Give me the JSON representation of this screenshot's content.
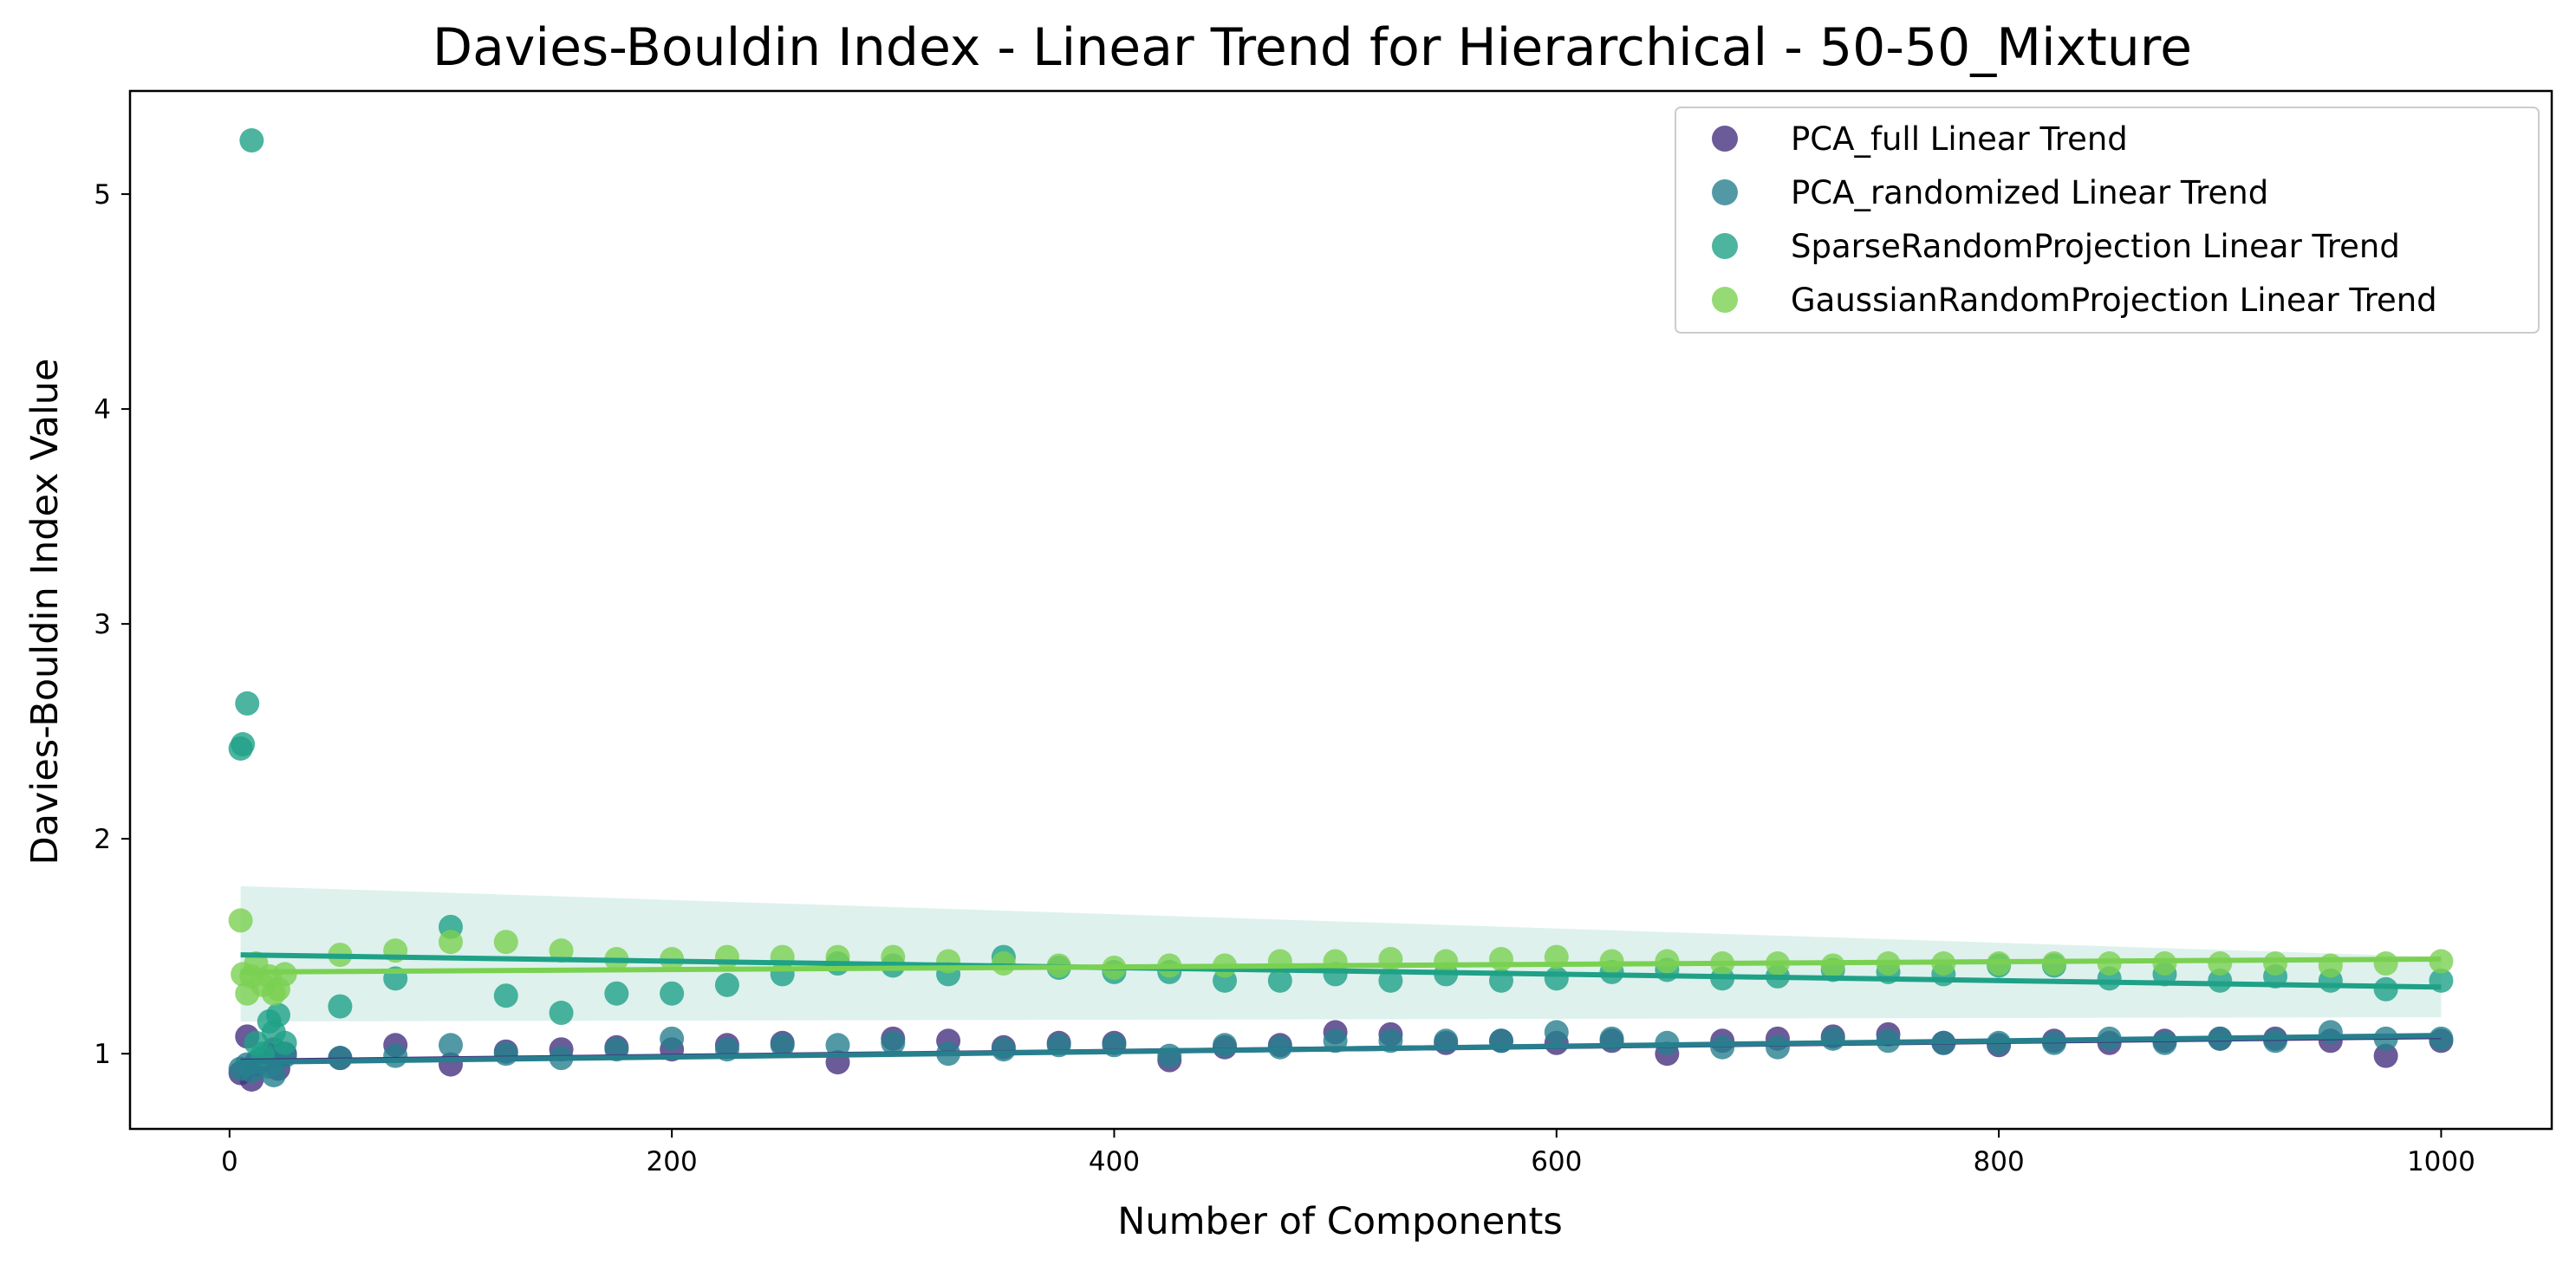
{
  "chart_data": {
    "type": "scatter",
    "title": "Davies-Bouldin Index - Linear Trend for Hierarchical - 50-50_Mixture",
    "xlabel": "Number of Components",
    "ylabel": "Davies-Bouldin Index Value",
    "xlim": [
      -45,
      1050
    ],
    "ylim": [
      0.65,
      5.48
    ],
    "xticks": [
      0,
      200,
      400,
      600,
      800,
      1000
    ],
    "yticks": [
      1,
      2,
      3,
      4,
      5
    ],
    "legend_position": "upper right",
    "series": [
      {
        "name": "PCA_full Linear Trend",
        "color": "#46327e",
        "x": [
          5,
          8,
          10,
          12,
          15,
          18,
          20,
          22,
          25,
          50,
          75,
          100,
          125,
          150,
          175,
          200,
          225,
          250,
          275,
          300,
          325,
          350,
          375,
          400,
          425,
          450,
          475,
          500,
          525,
          550,
          575,
          600,
          625,
          650,
          675,
          700,
          725,
          750,
          775,
          800,
          825,
          850,
          875,
          900,
          925,
          950,
          975,
          1000
        ],
        "y": [
          0.91,
          1.08,
          0.88,
          0.95,
          0.97,
          0.99,
          1.02,
          0.93,
          1.0,
          0.98,
          1.04,
          0.95,
          1.01,
          1.02,
          1.03,
          1.02,
          1.04,
          1.05,
          0.96,
          1.07,
          1.06,
          1.03,
          1.05,
          1.05,
          0.97,
          1.03,
          1.04,
          1.1,
          1.09,
          1.05,
          1.06,
          1.05,
          1.06,
          1.0,
          1.06,
          1.07,
          1.08,
          1.09,
          1.05,
          1.04,
          1.06,
          1.05,
          1.06,
          1.07,
          1.07,
          1.06,
          0.99,
          1.06
        ],
        "trend": [
          0.965,
          1.08
        ]
      },
      {
        "name": "PCA_randomized Linear Trend",
        "color": "#277f8e",
        "x": [
          5,
          8,
          10,
          12,
          15,
          18,
          20,
          22,
          25,
          50,
          75,
          100,
          125,
          150,
          175,
          200,
          225,
          250,
          275,
          300,
          325,
          350,
          375,
          400,
          425,
          450,
          475,
          500,
          525,
          550,
          575,
          600,
          625,
          650,
          675,
          700,
          725,
          750,
          775,
          800,
          825,
          850,
          875,
          900,
          925,
          950,
          975,
          1000
        ],
        "y": [
          0.93,
          0.95,
          0.92,
          0.96,
          0.98,
          0.94,
          0.9,
          1.0,
          0.99,
          0.98,
          0.99,
          1.04,
          1.0,
          0.98,
          1.02,
          1.07,
          1.02,
          1.04,
          1.04,
          1.05,
          1.0,
          1.02,
          1.04,
          1.04,
          0.99,
          1.04,
          1.03,
          1.06,
          1.06,
          1.06,
          1.06,
          1.1,
          1.07,
          1.05,
          1.03,
          1.03,
          1.07,
          1.06,
          1.05,
          1.05,
          1.05,
          1.07,
          1.05,
          1.07,
          1.06,
          1.1,
          1.07,
          1.07
        ],
        "trend": [
          0.96,
          1.085
        ]
      },
      {
        "name": "SparseRandomProjection Linear Trend",
        "color": "#1fa187",
        "x": [
          5,
          6,
          8,
          10,
          12,
          15,
          18,
          20,
          22,
          25,
          50,
          75,
          100,
          125,
          150,
          175,
          200,
          225,
          250,
          275,
          300,
          325,
          350,
          375,
          400,
          425,
          450,
          475,
          500,
          525,
          550,
          575,
          600,
          625,
          650,
          675,
          700,
          725,
          750,
          775,
          800,
          825,
          850,
          875,
          900,
          925,
          950,
          975,
          1000
        ],
        "y": [
          2.42,
          2.44,
          2.63,
          5.25,
          1.05,
          1.0,
          1.15,
          1.1,
          1.18,
          1.05,
          1.22,
          1.35,
          1.59,
          1.27,
          1.19,
          1.28,
          1.28,
          1.32,
          1.37,
          1.42,
          1.41,
          1.37,
          1.45,
          1.4,
          1.38,
          1.38,
          1.34,
          1.34,
          1.37,
          1.34,
          1.37,
          1.34,
          1.35,
          1.38,
          1.39,
          1.35,
          1.36,
          1.39,
          1.38,
          1.37,
          1.41,
          1.41,
          1.35,
          1.37,
          1.34,
          1.36,
          1.34,
          1.3,
          1.34
        ],
        "trend": [
          1.46,
          1.31
        ],
        "band": [
          [
            1.15,
            1.78
          ],
          [
            1.17,
            1.45
          ]
        ]
      },
      {
        "name": "GaussianRandomProjection Linear Trend",
        "color": "#7ad151",
        "x": [
          5,
          6,
          8,
          10,
          12,
          15,
          18,
          20,
          22,
          25,
          50,
          75,
          100,
          125,
          150,
          175,
          200,
          225,
          250,
          275,
          300,
          325,
          350,
          375,
          400,
          425,
          450,
          475,
          500,
          525,
          550,
          575,
          600,
          625,
          650,
          675,
          700,
          725,
          750,
          775,
          800,
          825,
          850,
          875,
          900,
          925,
          950,
          975,
          1000
        ],
        "y": [
          1.62,
          1.37,
          1.28,
          1.36,
          1.42,
          1.32,
          1.36,
          1.28,
          1.3,
          1.37,
          1.46,
          1.48,
          1.52,
          1.52,
          1.48,
          1.44,
          1.44,
          1.45,
          1.45,
          1.45,
          1.45,
          1.43,
          1.42,
          1.41,
          1.4,
          1.41,
          1.41,
          1.43,
          1.43,
          1.44,
          1.43,
          1.44,
          1.45,
          1.43,
          1.43,
          1.42,
          1.42,
          1.41,
          1.42,
          1.42,
          1.42,
          1.42,
          1.42,
          1.42,
          1.42,
          1.42,
          1.41,
          1.42,
          1.43
        ],
        "trend": [
          1.38,
          1.44
        ]
      }
    ]
  }
}
